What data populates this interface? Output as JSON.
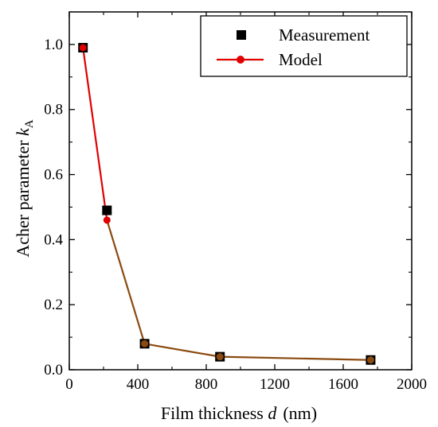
{
  "chart_data": {
    "type": "line",
    "xlabel": {
      "text": "Film thickness ",
      "var": "d",
      "unit": "(nm)"
    },
    "ylabel": {
      "text": "Acher parameter ",
      "var": "k",
      "sub": "A"
    },
    "xlim": [
      0,
      2000
    ],
    "ylim": [
      0,
      1.1
    ],
    "xticks": [
      0,
      400,
      800,
      1200,
      1600,
      2000
    ],
    "xtick_labels": [
      "0",
      "400",
      "800",
      "1200",
      "1600",
      "2000"
    ],
    "yticks": [
      0.0,
      0.2,
      0.4,
      0.6,
      0.8,
      1.0
    ],
    "ytick_labels": [
      "0.0",
      "0.2",
      "0.4",
      "0.6",
      "0.8",
      "1.0"
    ],
    "grid": false,
    "legend_position": "top-right",
    "series": [
      {
        "name": "Measurement",
        "kind": "scatter",
        "marker": "square",
        "color": "#000000",
        "x": [
          80,
          220,
          440,
          880,
          1760
        ],
        "y": [
          0.99,
          0.49,
          0.08,
          0.04,
          0.03
        ]
      },
      {
        "name": "Model",
        "kind": "line",
        "marker": "circle",
        "color": "#e00000",
        "segment_color_after_second_point": "#8a4a10",
        "x": [
          80,
          220,
          440,
          880,
          1760
        ],
        "y": [
          0.99,
          0.46,
          0.08,
          0.04,
          0.03
        ]
      }
    ]
  }
}
